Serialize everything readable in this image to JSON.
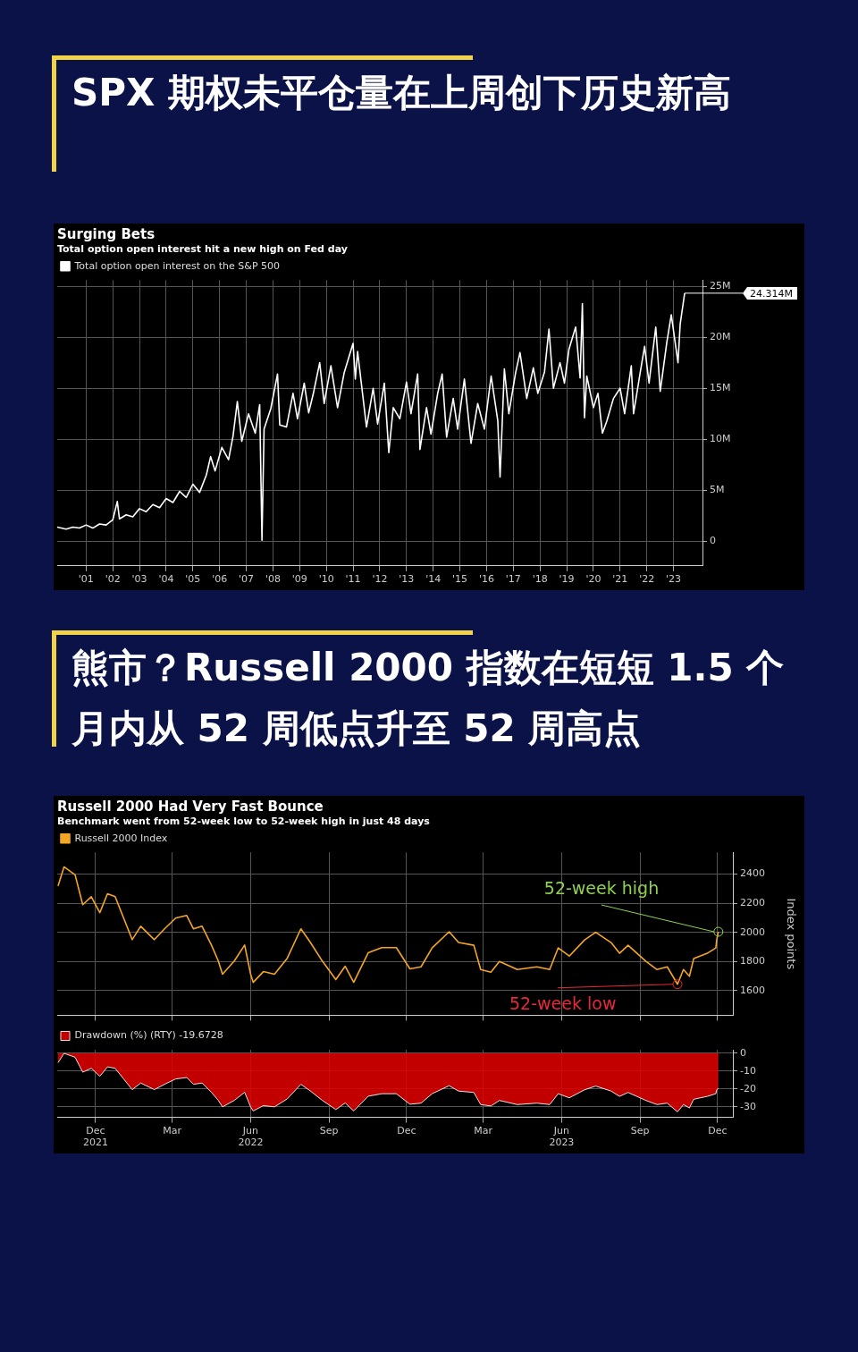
{
  "chart_data": [
    {
      "type": "line",
      "title": "Surging Bets",
      "subtitle": "Total option open interest hit a new high on Fed day",
      "legend": "top left",
      "grid": true,
      "annotations": [
        "SPX 期权未平仓量在上周创下历史新高",
        {
          "text": "24.314M",
          "x": "2023-12",
          "y": 24.314
        }
      ],
      "x": [
        "2000-06",
        "2000-10",
        "2001-01",
        "2001-04",
        "2001-07",
        "2001-10",
        "2002-01",
        "2002-04",
        "2002-07",
        "2002-09",
        "2002-10",
        "2003-01",
        "2003-04",
        "2003-07",
        "2003-10",
        "2004-01",
        "2004-04",
        "2004-07",
        "2004-10",
        "2005-01",
        "2005-04",
        "2005-07",
        "2005-10",
        "2006-01",
        "2006-03",
        "2006-05",
        "2006-08",
        "2006-11",
        "2007-01",
        "2007-03",
        "2007-05",
        "2007-08",
        "2007-11",
        "2008-01",
        "2008-02",
        "2008-03",
        "2008-06",
        "2008-09",
        "2008-10",
        "2009-01",
        "2009-04",
        "2009-06",
        "2009-09",
        "2009-11",
        "2010-01",
        "2010-04",
        "2010-06",
        "2010-09",
        "2010-12",
        "2011-03",
        "2011-07",
        "2011-08",
        "2011-09",
        "2012-01",
        "2012-04",
        "2012-06",
        "2012-09",
        "2012-11",
        "2013-01",
        "2013-04",
        "2013-07",
        "2013-09",
        "2013-12",
        "2014-01",
        "2014-04",
        "2014-06",
        "2014-09",
        "2014-11",
        "2015-01",
        "2015-04",
        "2015-06",
        "2015-09",
        "2015-12",
        "2016-03",
        "2016-06",
        "2016-09",
        "2016-12",
        "2017-01",
        "2017-03",
        "2017-05",
        "2017-08",
        "2017-10",
        "2018-01",
        "2018-04",
        "2018-06",
        "2018-09",
        "2018-11",
        "2019-01",
        "2019-04",
        "2019-06",
        "2019-08",
        "2019-11",
        "2020-01",
        "2020-02",
        "2020-03",
        "2020-04",
        "2020-07",
        "2020-09",
        "2020-11",
        "2021-01",
        "2021-04",
        "2021-07",
        "2021-09",
        "2021-12",
        "2022-01",
        "2022-04",
        "2022-06",
        "2022-08",
        "2022-11",
        "2023-01",
        "2023-04",
        "2023-06",
        "2023-09",
        "2023-10",
        "2023-12"
      ],
      "series": [
        {
          "name": "Total option open interest on the S&P 500",
          "color": "#ffffff",
          "values": [
            1.4,
            1.2,
            1.4,
            1.3,
            1.6,
            1.3,
            1.7,
            1.6,
            2.1,
            3.9,
            2.2,
            2.6,
            2.4,
            3.2,
            2.9,
            3.6,
            3.3,
            4.2,
            3.8,
            4.9,
            4.3,
            5.6,
            4.8,
            6.5,
            8.3,
            6.9,
            9.2,
            8.0,
            10.3,
            13.7,
            9.8,
            12.5,
            10.6,
            13.4,
            0.1,
            11.0,
            13.0,
            16.4,
            11.4,
            11.2,
            14.5,
            12.0,
            15.5,
            12.6,
            14.4,
            17.5,
            13.5,
            17.2,
            13.1,
            16.5,
            19.4,
            15.9,
            18.6,
            11.2,
            15.0,
            11.5,
            15.5,
            8.7,
            13.1,
            12.0,
            15.6,
            12.5,
            16.4,
            9.0,
            13.1,
            10.5,
            14.5,
            16.4,
            10.2,
            14.0,
            11.0,
            15.9,
            9.6,
            13.5,
            11.0,
            16.2,
            11.8,
            6.3,
            16.9,
            12.5,
            16.5,
            18.5,
            14.0,
            17.0,
            14.5,
            16.6,
            20.8,
            15.0,
            17.5,
            15.5,
            18.8,
            21.0,
            16.0,
            23.3,
            12.1,
            16.2,
            13.1,
            14.5,
            10.6,
            11.8,
            14.0,
            15.0,
            12.5,
            17.2,
            12.5,
            16.5,
            19.1,
            15.5,
            21.0,
            14.7,
            19.5,
            22.2,
            17.5,
            21.3,
            24.314
          ]
        }
      ],
      "xlim": [
        "2000-06",
        "2024-08"
      ],
      "xticks": [
        {
          "value": "2001-07",
          "label": "'01"
        },
        {
          "value": "2002-07",
          "label": "'02"
        },
        {
          "value": "2003-07",
          "label": "'03"
        },
        {
          "value": "2004-07",
          "label": "'04"
        },
        {
          "value": "2005-07",
          "label": "'05"
        },
        {
          "value": "2006-07",
          "label": "'06"
        },
        {
          "value": "2007-07",
          "label": "'07"
        },
        {
          "value": "2008-07",
          "label": "'08"
        },
        {
          "value": "2009-07",
          "label": "'09"
        },
        {
          "value": "2010-07",
          "label": "'10"
        },
        {
          "value": "2011-07",
          "label": "'11"
        },
        {
          "value": "2012-07",
          "label": "'12"
        },
        {
          "value": "2013-07",
          "label": "'13"
        },
        {
          "value": "2014-07",
          "label": "'14"
        },
        {
          "value": "2015-07",
          "label": "'15"
        },
        {
          "value": "2016-07",
          "label": "'16"
        },
        {
          "value": "2017-07",
          "label": "'17"
        },
        {
          "value": "2018-07",
          "label": "'18"
        },
        {
          "value": "2019-07",
          "label": "'19"
        },
        {
          "value": "2020-07",
          "label": "'20"
        },
        {
          "value": "2021-07",
          "label": "'21"
        },
        {
          "value": "2022-07",
          "label": "'22"
        },
        {
          "value": "2023-07",
          "label": "'23"
        }
      ],
      "ylim": [
        -2.4,
        25.6
      ],
      "yticks": [
        0,
        {
          "value": 5,
          "label": "5M"
        },
        {
          "value": 10,
          "label": "10M"
        },
        {
          "value": 15,
          "label": "15M"
        },
        {
          "value": 20,
          "label": "20M"
        },
        {
          "value": 25,
          "label": "25M"
        }
      ]
    },
    {
      "type": "line",
      "title": "Russell 2000 Had Very Fast Bounce",
      "subtitle": "Benchmark went from 52-week low to 52-week high in just 48 days",
      "legend": "top left",
      "grid": true,
      "tick_labels": "y",
      "ylabel": "Index points",
      "annotations": [
        "熊市？Russell 2000 指数在短短 1.5 个月内从 52 周低点升至 52 周高点",
        {
          "text": "52-week high",
          "x": "2023-12-16",
          "y": 2004
        },
        {
          "text": "52-week low",
          "x": "2023-10-29",
          "y": 1643
        }
      ],
      "x": [
        "2021-11-01",
        "2021-11-08",
        "2021-11-21",
        "2021-11-30",
        "2021-12-10",
        "2021-12-20",
        "2021-12-29",
        "2022-01-07",
        "2022-01-17",
        "2022-01-27",
        "2022-02-06",
        "2022-02-22",
        "2022-03-06",
        "2022-03-19",
        "2022-04-01",
        "2022-04-09",
        "2022-04-19",
        "2022-04-30",
        "2022-05-08",
        "2022-05-13",
        "2022-05-27",
        "2022-06-08",
        "2022-06-15",
        "2022-06-18",
        "2022-06-30",
        "2022-07-13",
        "2022-07-28",
        "2022-08-13",
        "2022-08-24",
        "2022-09-07",
        "2022-09-23",
        "2022-10-04",
        "2022-10-14",
        "2022-10-31",
        "2022-11-16",
        "2022-12-03",
        "2022-12-19",
        "2023-01-01",
        "2023-01-14",
        "2023-02-03",
        "2023-02-14",
        "2023-03-04",
        "2023-03-12",
        "2023-03-24",
        "2023-04-03",
        "2023-04-24",
        "2023-05-17",
        "2023-06-01",
        "2023-06-11",
        "2023-06-24",
        "2023-07-12",
        "2023-07-25",
        "2023-08-12",
        "2023-08-22",
        "2023-09-01",
        "2023-09-22",
        "2023-10-05",
        "2023-10-17",
        "2023-10-29",
        "2023-11-05",
        "2023-11-12",
        "2023-11-17",
        "2023-12-03",
        "2023-12-13",
        "2023-12-14",
        "2023-12-16"
      ],
      "series": [
        {
          "name": "Russell 2000 Index",
          "color": "#f5a623",
          "values": [
            2319,
            2450,
            2395,
            2190,
            2245,
            2135,
            2265,
            2245,
            2098,
            1950,
            2042,
            1950,
            2024,
            2098,
            2116,
            2024,
            2042,
            1913,
            1804,
            1712,
            1804,
            1913,
            1712,
            1656,
            1730,
            1712,
            1822,
            2024,
            1932,
            1804,
            1675,
            1767,
            1656,
            1859,
            1895,
            1895,
            1749,
            1763,
            1893,
            2004,
            1930,
            1911,
            1744,
            1726,
            1800,
            1744,
            1763,
            1744,
            1893,
            1837,
            1948,
            2000,
            1930,
            1856,
            1911,
            1800,
            1744,
            1763,
            1643,
            1744,
            1698,
            1819,
            1856,
            1893,
            1948,
            2004
          ]
        }
      ],
      "xlim": [
        "2021-10-31",
        "2024-01-02"
      ],
      "xticks": [
        {
          "value": "2021-12-15",
          "label": null
        },
        {
          "value": "2022-03-15",
          "label": null
        },
        {
          "value": "2022-06-15",
          "label": null
        },
        {
          "value": "2022-09-15",
          "label": null
        },
        {
          "value": "2022-12-15",
          "label": null
        },
        {
          "value": "2023-03-15",
          "label": null
        },
        {
          "value": "2023-06-15",
          "label": null
        },
        {
          "value": "2023-09-15",
          "label": null
        },
        {
          "value": "2023-12-15",
          "label": null
        }
      ],
      "ylim": [
        1430,
        2550
      ],
      "yticks": [
        1600,
        1800,
        2000,
        2200,
        2400
      ]
    },
    {
      "type": "area",
      "legend": "top left",
      "grid": true,
      "x": [
        "2021-11-01",
        "2021-11-08",
        "2021-11-21",
        "2021-11-30",
        "2021-12-10",
        "2021-12-20",
        "2021-12-29",
        "2022-01-07",
        "2022-01-17",
        "2022-01-27",
        "2022-02-06",
        "2022-02-22",
        "2022-03-06",
        "2022-03-19",
        "2022-04-01",
        "2022-04-09",
        "2022-04-19",
        "2022-04-30",
        "2022-05-08",
        "2022-05-13",
        "2022-05-27",
        "2022-06-08",
        "2022-06-15",
        "2022-06-18",
        "2022-06-30",
        "2022-07-13",
        "2022-07-28",
        "2022-08-13",
        "2022-08-24",
        "2022-09-07",
        "2022-09-23",
        "2022-10-04",
        "2022-10-14",
        "2022-10-31",
        "2022-11-16",
        "2022-12-03",
        "2022-12-19",
        "2023-01-01",
        "2023-01-14",
        "2023-02-03",
        "2023-02-14",
        "2023-03-04",
        "2023-03-12",
        "2023-03-24",
        "2023-04-03",
        "2023-04-24",
        "2023-05-17",
        "2023-06-01",
        "2023-06-11",
        "2023-06-24",
        "2023-07-12",
        "2023-07-25",
        "2023-08-12",
        "2023-08-22",
        "2023-09-01",
        "2023-09-22",
        "2023-10-05",
        "2023-10-17",
        "2023-10-29",
        "2023-11-05",
        "2023-11-12",
        "2023-11-17",
        "2023-12-03",
        "2023-12-13",
        "2023-12-14",
        "2023-12-16"
      ],
      "series": [
        {
          "name": "Drawdown (%) (RTY) -19.6728",
          "color": "#e00000",
          "values": [
            -5.3,
            0,
            -2.2,
            -10.6,
            -8.4,
            -12.9,
            -7.6,
            -8.4,
            -14.4,
            -20.4,
            -16.7,
            -20.4,
            -17.4,
            -14.4,
            -13.6,
            -17.4,
            -16.7,
            -21.9,
            -26.4,
            -30.1,
            -26.4,
            -21.9,
            -30.1,
            -32.4,
            -29.4,
            -30.1,
            -25.6,
            -17.4,
            -21.1,
            -26.4,
            -31.6,
            -27.9,
            -32.4,
            -24.1,
            -22.7,
            -22.7,
            -28.6,
            -28.0,
            -22.7,
            -18.2,
            -21.2,
            -22.0,
            -28.8,
            -29.6,
            -26.5,
            -28.8,
            -28.0,
            -28.8,
            -22.7,
            -25.0,
            -20.5,
            -18.4,
            -21.2,
            -24.2,
            -22.0,
            -26.5,
            -28.8,
            -28.0,
            -32.9,
            -28.8,
            -30.7,
            -25.8,
            -24.2,
            -22.7,
            -20.5,
            -19.6728
          ]
        }
      ],
      "xlim": [
        "2021-10-31",
        "2024-01-02"
      ],
      "xticks": [
        {
          "value": "2021-12-15",
          "label": "Dec\n2021"
        },
        {
          "value": "2022-03-15",
          "label": "Mar"
        },
        {
          "value": "2022-06-15",
          "label": "Jun\n2022"
        },
        {
          "value": "2022-09-15",
          "label": "Sep"
        },
        {
          "value": "2022-12-15",
          "label": "Dec"
        },
        {
          "value": "2023-03-15",
          "label": "Mar"
        },
        {
          "value": "2023-06-15",
          "label": "Jun\n2023"
        },
        {
          "value": "2023-09-15",
          "label": "Sep"
        },
        {
          "value": "2023-12-15",
          "label": "Dec"
        }
      ],
      "ylim": [
        -36,
        2
      ],
      "yticks": [
        0,
        -10,
        -20,
        -30
      ]
    }
  ]
}
